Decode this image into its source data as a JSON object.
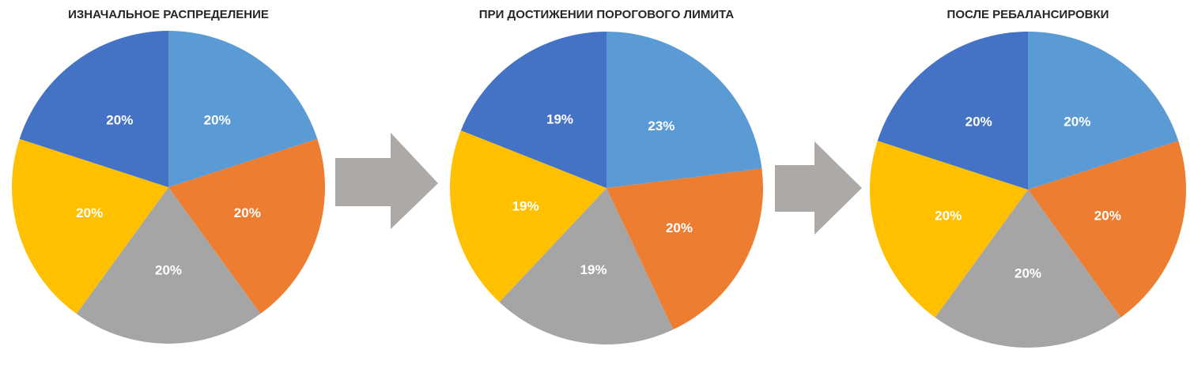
{
  "chart_data": [
    {
      "type": "pie",
      "title": "ИЗНАЧАЛЬНОЕ РАСПРЕДЕЛЕНИЕ",
      "values": [
        20,
        20,
        20,
        20,
        20
      ],
      "labels": [
        "20%",
        "20%",
        "20%",
        "20%",
        "20%"
      ],
      "colors": [
        "#5B9BD5",
        "#ED7D31",
        "#A5A5A5",
        "#FFC000",
        "#4472C4"
      ]
    },
    {
      "type": "pie",
      "title": "ПРИ ДОСТИЖЕНИИ ПОРОГОВОГО ЛИМИТА",
      "values": [
        23,
        20,
        19,
        19,
        19
      ],
      "labels": [
        "23%",
        "20%",
        "19%",
        "19%",
        "19%"
      ],
      "colors": [
        "#5B9BD5",
        "#ED7D31",
        "#A5A5A5",
        "#FFC000",
        "#4472C4"
      ]
    },
    {
      "type": "pie",
      "title": "ПОСЛЕ РЕБАЛАНСИРОВКИ",
      "values": [
        20,
        20,
        20,
        20,
        20
      ],
      "labels": [
        "20%",
        "20%",
        "20%",
        "20%",
        "20%"
      ],
      "colors": [
        "#5B9BD5",
        "#ED7D31",
        "#A5A5A5",
        "#FFC000",
        "#4472C4"
      ]
    }
  ],
  "arrow_color": "#ADA9A6"
}
